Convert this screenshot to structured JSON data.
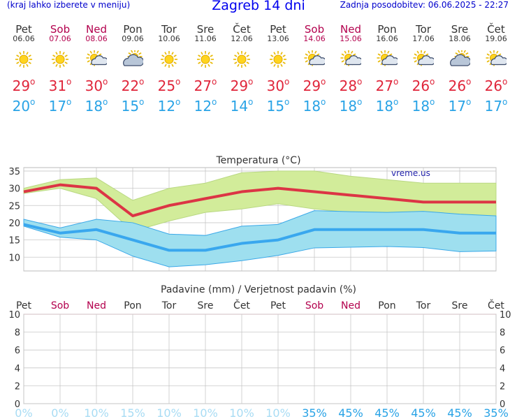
{
  "header": {
    "menu_hint": "(kraj lahko izberete v meniju)",
    "title": "Zagreb 14 dni",
    "updated": "Zadnja posodobitev: 06.06.2025 - 22:27"
  },
  "days": [
    {
      "name": "Pet",
      "date": "06.06",
      "weekend": false,
      "icon": "sun-icon",
      "tmax": "29",
      "tmin": "20"
    },
    {
      "name": "Sob",
      "date": "07.06",
      "weekend": true,
      "icon": "sun-icon",
      "tmax": "31",
      "tmin": "17"
    },
    {
      "name": "Ned",
      "date": "08.06",
      "weekend": true,
      "icon": "sun-cloud-icon",
      "tmax": "30",
      "tmin": "18"
    },
    {
      "name": "Pon",
      "date": "09.06",
      "weekend": false,
      "icon": "cloud-sun-icon",
      "tmax": "22",
      "tmin": "15"
    },
    {
      "name": "Tor",
      "date": "10.06",
      "weekend": false,
      "icon": "sun-icon",
      "tmax": "25",
      "tmin": "12"
    },
    {
      "name": "Sre",
      "date": "11.06",
      "weekend": false,
      "icon": "sun-icon",
      "tmax": "27",
      "tmin": "12"
    },
    {
      "name": "Čet",
      "date": "12.06",
      "weekend": false,
      "icon": "sun-icon",
      "tmax": "29",
      "tmin": "14"
    },
    {
      "name": "Pet",
      "date": "13.06",
      "weekend": false,
      "icon": "sun-icon",
      "tmax": "30",
      "tmin": "15"
    },
    {
      "name": "Sob",
      "date": "14.06",
      "weekend": true,
      "icon": "sun-cloud-icon",
      "tmax": "29",
      "tmin": "18"
    },
    {
      "name": "Ned",
      "date": "15.06",
      "weekend": true,
      "icon": "sun-cloud-icon",
      "tmax": "28",
      "tmin": "18"
    },
    {
      "name": "Pon",
      "date": "16.06",
      "weekend": false,
      "icon": "sun-cloud-icon",
      "tmax": "27",
      "tmin": "18"
    },
    {
      "name": "Tor",
      "date": "17.06",
      "weekend": false,
      "icon": "sun-cloud-icon",
      "tmax": "26",
      "tmin": "18"
    },
    {
      "name": "Sre",
      "date": "18.06",
      "weekend": false,
      "icon": "cloud-sun-icon",
      "tmax": "26",
      "tmin": "17"
    },
    {
      "name": "Čet",
      "date": "19.06",
      "weekend": false,
      "icon": "sun-cloud-icon",
      "tmax": "26",
      "tmin": "17"
    }
  ],
  "degree_symbol": "o",
  "colors": {
    "max_line": "#dc3545",
    "min_line": "#39a7ee",
    "max_band": "#d2ec9a",
    "min_band": "#9edfef",
    "weekend": "#b3004d",
    "grid": "#c8c8c8"
  },
  "chart_data": [
    {
      "type": "line",
      "title": "Temperatura (°C)",
      "watermark": "vreme.us",
      "categories": [
        "06.06",
        "07.06",
        "08.06",
        "09.06",
        "10.06",
        "11.06",
        "12.06",
        "13.06",
        "14.06",
        "15.06",
        "16.06",
        "17.06",
        "18.06",
        "19.06"
      ],
      "yticks": [
        "10",
        "15",
        "20",
        "25",
        "30",
        "35"
      ],
      "ylim": [
        6,
        36
      ],
      "grid": true,
      "series": [
        {
          "role": "max",
          "values": [
            29,
            31,
            30,
            22,
            25,
            27,
            29,
            30,
            29,
            28,
            27,
            26,
            26,
            26
          ]
        },
        {
          "role": "max-upper",
          "values": [
            30,
            32.5,
            33,
            26.5,
            30,
            31.5,
            34.5,
            35,
            35,
            33.5,
            32.5,
            31.5,
            31.5,
            31.5
          ]
        },
        {
          "role": "max-lower",
          "values": [
            28.5,
            30,
            27,
            17.5,
            20.5,
            23,
            24,
            25.5,
            24,
            23,
            22,
            21,
            21.5,
            22
          ]
        },
        {
          "role": "min",
          "values": [
            19.5,
            17,
            18,
            15,
            12,
            12,
            14,
            15,
            18,
            18,
            18,
            18,
            17,
            17
          ]
        },
        {
          "role": "min-upper",
          "values": [
            21,
            18.5,
            21,
            20,
            16.7,
            16.3,
            19,
            19.5,
            23.5,
            23.2,
            23,
            23.3,
            22.5,
            22
          ]
        },
        {
          "role": "min-lower",
          "values": [
            19,
            15.8,
            15,
            10.3,
            7.2,
            7.8,
            9,
            10.5,
            12.7,
            12.9,
            13.1,
            12.8,
            11.6,
            11.8
          ]
        }
      ]
    },
    {
      "type": "bar",
      "title": "Padavine (mm) / Verjetnost padavin (%)",
      "categories": [
        "Pet",
        "Sob",
        "Ned",
        "Pon",
        "Tor",
        "Sre",
        "Čet",
        "Pet",
        "Sob",
        "Ned",
        "Pon",
        "Tor",
        "Sre",
        "Čet"
      ],
      "yticks": [
        "0",
        "2",
        "4",
        "6",
        "8",
        "10"
      ],
      "ylim": [
        0,
        10
      ],
      "values": [
        0,
        0,
        0,
        0,
        0,
        0,
        0,
        0,
        0,
        0,
        0,
        0,
        0,
        0
      ],
      "probability": [
        "0%",
        "0%",
        "10%",
        "15%",
        "10%",
        "10%",
        "10%",
        "10%",
        "35%",
        "45%",
        "45%",
        "45%",
        "45%",
        "35%"
      ],
      "grid": true
    }
  ]
}
